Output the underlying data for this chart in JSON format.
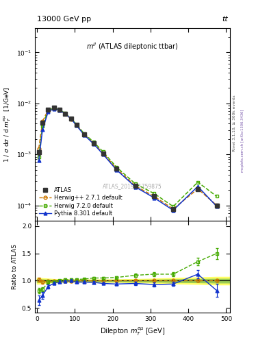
{
  "title_top": "13000 GeV pp",
  "title_top_right": "tt",
  "annotation": "m$^{ll}$ (ATLAS dileptonic ttbar)",
  "atlas_label": "ATLAS_2019_I1759875",
  "rivet_label": "Rivet 3.1.10, ≥ 300k events",
  "mcplots_label": "mcplots.cern.ch [arXiv:1306.3436]",
  "xlabel": "Dilepton $m_T^{e\\mu}$ [GeV]",
  "ylabel": "1 / $\\sigma$ d$\\sigma$ / d $m_T^{e\\mu}$  [1/GeV]",
  "ylabel_ratio": "Ratio to ATLAS",
  "ylim_main_log": [
    -4.3,
    -0.7
  ],
  "xlim": [
    -5,
    510
  ],
  "ylim_ratio": [
    0.42,
    2.1
  ],
  "x_data": [
    5,
    15,
    30,
    45,
    60,
    75,
    90,
    105,
    125,
    150,
    175,
    210,
    260,
    310,
    360,
    425,
    475
  ],
  "atlas_y": [
    0.0011,
    0.0042,
    0.0076,
    0.0082,
    0.0075,
    0.0063,
    0.005,
    0.00375,
    0.00245,
    0.00165,
    0.00105,
    0.00053,
    0.00024,
    0.00015,
    8.5e-05,
    0.00021,
    0.0001
  ],
  "atlas_yerr": [
    0.00012,
    0.00025,
    0.0003,
    0.0003,
    0.00025,
    0.0002,
    0.00018,
    0.00015,
    0.0001,
    8e-05,
    5e-05,
    2.5e-05,
    1.2e-05,
    8e-06,
    5e-06,
    1.5e-05,
    8e-06
  ],
  "herwig271_y": [
    0.0013,
    0.0044,
    0.00755,
    0.0081,
    0.00745,
    0.00625,
    0.00495,
    0.00375,
    0.00245,
    0.00165,
    0.00105,
    0.00053,
    0.00024,
    0.00015,
    8.5e-05,
    0.00021,
    0.0001
  ],
  "herwig720_y": [
    0.0009,
    0.0036,
    0.00745,
    0.008,
    0.0075,
    0.0064,
    0.0051,
    0.00385,
    0.00255,
    0.00175,
    0.00112,
    0.000565,
    0.000265,
    0.00017,
    9.5e-05,
    0.000285,
    0.00015
  ],
  "pythia_y": [
    0.00075,
    0.0031,
    0.0069,
    0.00785,
    0.00735,
    0.00625,
    0.005,
    0.00365,
    0.0024,
    0.0016,
    0.001,
    0.0005,
    0.00023,
    0.00014,
    8e-05,
    0.000235,
    9.5e-05
  ],
  "ratio_herwig271": [
    1.02,
    0.975,
    0.99,
    0.99,
    0.99,
    0.99,
    0.99,
    1.0,
    1.0,
    1.0,
    1.0,
    1.0,
    1.0,
    1.0,
    1.0,
    1.0,
    1.0
  ],
  "ratio_herwig271_err": [
    0.04,
    0.03,
    0.02,
    0.02,
    0.02,
    0.02,
    0.02,
    0.02,
    0.02,
    0.02,
    0.02,
    0.02,
    0.02,
    0.02,
    0.02,
    0.02,
    0.02
  ],
  "ratio_herwig720": [
    0.82,
    0.84,
    0.975,
    0.975,
    1.0,
    1.02,
    1.02,
    1.025,
    1.03,
    1.05,
    1.05,
    1.06,
    1.1,
    1.12,
    1.12,
    1.35,
    1.5
  ],
  "ratio_herwig720_err": [
    0.05,
    0.04,
    0.03,
    0.02,
    0.02,
    0.02,
    0.02,
    0.02,
    0.02,
    0.02,
    0.02,
    0.02,
    0.03,
    0.04,
    0.04,
    0.07,
    0.1
  ],
  "ratio_pythia": [
    0.64,
    0.73,
    0.895,
    0.955,
    0.975,
    0.99,
    1.0,
    0.975,
    0.975,
    0.97,
    0.95,
    0.94,
    0.95,
    0.93,
    0.94,
    1.12,
    0.82
  ],
  "ratio_pythia_err": [
    0.09,
    0.06,
    0.04,
    0.03,
    0.025,
    0.02,
    0.02,
    0.02,
    0.02,
    0.02,
    0.02,
    0.025,
    0.03,
    0.035,
    0.04,
    0.08,
    0.12
  ],
  "band_x": [
    0,
    5,
    15,
    30,
    45,
    60,
    75,
    90,
    105,
    125,
    150,
    175,
    210,
    260,
    310,
    360,
    425,
    475,
    510
  ],
  "band_y": [
    1.0,
    1.0,
    1.0,
    1.0,
    1.0,
    1.0,
    1.0,
    1.0,
    1.0,
    1.0,
    1.0,
    1.0,
    1.0,
    1.0,
    1.0,
    1.0,
    1.0,
    1.0,
    1.0
  ],
  "band_yellow": [
    0.055,
    0.055,
    0.045,
    0.038,
    0.03,
    0.028,
    0.025,
    0.022,
    0.022,
    0.022,
    0.022,
    0.022,
    0.025,
    0.03,
    0.038,
    0.05,
    0.06,
    0.07,
    0.07
  ],
  "band_green": [
    0.025,
    0.025,
    0.022,
    0.018,
    0.014,
    0.012,
    0.01,
    0.01,
    0.01,
    0.01,
    0.01,
    0.01,
    0.012,
    0.015,
    0.018,
    0.025,
    0.03,
    0.035,
    0.035
  ],
  "color_atlas": "#333333",
  "color_herwig271": "#cc7700",
  "color_herwig720": "#44aa00",
  "color_pythia": "#1133cc",
  "color_band_yellow": "#ffff66",
  "color_band_green": "#99cc55"
}
